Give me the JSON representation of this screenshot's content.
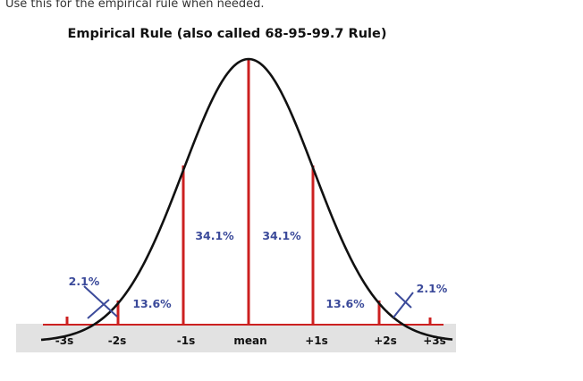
{
  "page": {
    "instruction": "Use this for the empirical rule when needed."
  },
  "diagram": {
    "title": "Empirical Rule (also called 68-95-99.7 Rule)",
    "regions": {
      "left_tail": "2.1%",
      "left_middle": "13.6%",
      "left_center": "34.1%",
      "right_center": "34.1%",
      "right_middle": "13.6%",
      "right_tail": "2.1%"
    },
    "axis_labels": [
      "-3s",
      "-2s",
      "-1s",
      "mean",
      "+1s",
      "+2s",
      "+3s"
    ],
    "colors": {
      "curve": "#111111",
      "lines": "#cc2020",
      "percent_text": "#3b4a9a",
      "tail_marks": "#3b4a9a",
      "axis_band": "#e2e2e2"
    }
  }
}
